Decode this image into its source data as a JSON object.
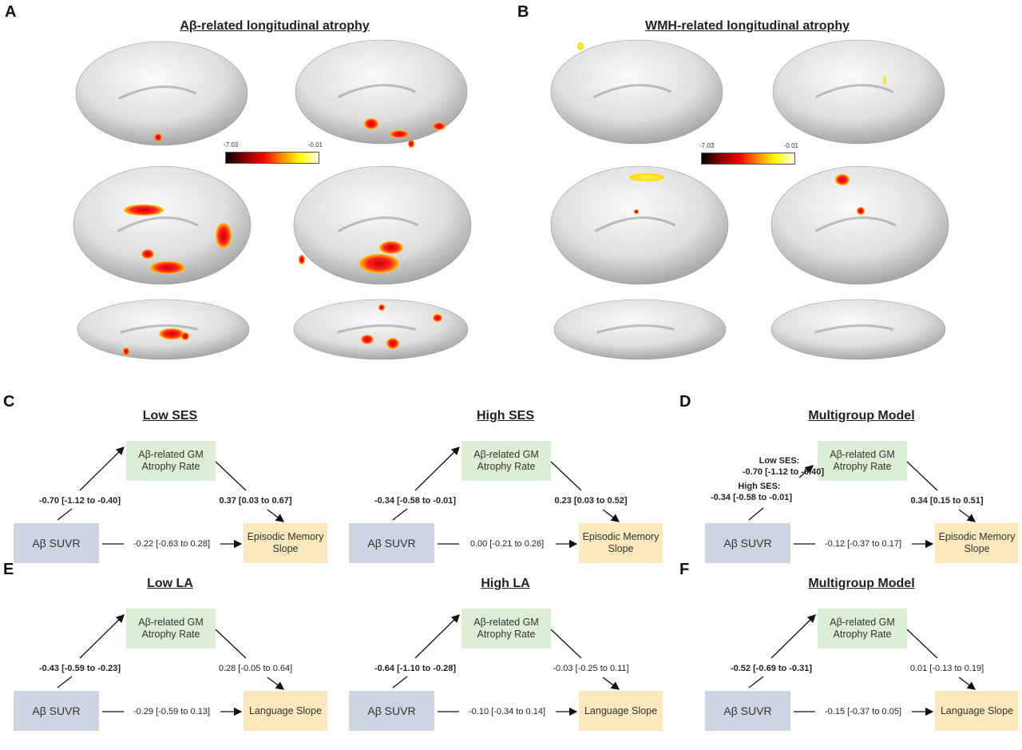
{
  "panels": {
    "A": {
      "label": "A",
      "title": "Aβ-related longitudinal atrophy",
      "colorbar": {
        "min": "-7.03",
        "max": "-0.01"
      }
    },
    "B": {
      "label": "B",
      "title": "WMH-related longitudinal atrophy",
      "colorbar": {
        "min": "-7.03",
        "max": "-0.01"
      }
    },
    "C": {
      "label": "C"
    },
    "D": {
      "label": "D"
    },
    "E": {
      "label": "E"
    },
    "F": {
      "label": "F"
    }
  },
  "colormap": [
    "#000000",
    "#880000",
    "#ee0000",
    "#ff8800",
    "#ffff00",
    "#ffffe8"
  ],
  "diagrams": [
    {
      "id": "c-low-ses",
      "title": "Low SES",
      "mediator": "Aβ-related GM Atrophy Rate",
      "predictor": "Aβ SUVR",
      "outcome": "Episodic Memory Slope",
      "a": [
        "-0.70 [-1.12 to -0.40]"
      ],
      "a_bold": true,
      "b": "0.37 [0.03 to 0.67]",
      "b_bold": true,
      "c": "-0.22 [-0.63 to 0.28]"
    },
    {
      "id": "c-high-ses",
      "title": "High SES",
      "mediator": "Aβ-related GM Atrophy Rate",
      "predictor": "Aβ SUVR",
      "outcome": "Episodic Memory Slope",
      "a": [
        "-0.34 [-0.58 to -0.01]"
      ],
      "a_bold": true,
      "b": "0.23 [0.03 to 0.52]",
      "b_bold": true,
      "c": "0.00 [-0.21 to 0.26]"
    },
    {
      "id": "d-multigroup",
      "title": "Multigroup Model",
      "mediator": "Aβ-related GM Atrophy Rate",
      "predictor": "Aβ SUVR",
      "outcome": "Episodic Memory Slope",
      "a": [
        "Low SES:",
        "-0.70 [-1.12 to -0.40]",
        "High SES:",
        "-0.34 [-0.58 to -0.01]"
      ],
      "a_bold": true,
      "b": "0.34 [0.15 to 0.51]",
      "b_bold": true,
      "c": "-0.12 [-0.37 to 0.17]"
    },
    {
      "id": "e-low-la",
      "title": "Low LA",
      "mediator": "Aβ-related GM Atrophy Rate",
      "predictor": "Aβ SUVR",
      "outcome": "Language Slope",
      "a": [
        "-0.43 [-0.59 to -0.23]"
      ],
      "a_bold": true,
      "b": "0.28 [-0.05 to 0.64]",
      "b_bold": false,
      "c": "-0.29 [-0.59 to 0.13]"
    },
    {
      "id": "e-high-la",
      "title": "High LA",
      "mediator": "Aβ-related GM Atrophy Rate",
      "predictor": "Aβ SUVR",
      "outcome": "Language Slope",
      "a": [
        "-0.64 [-1.10 to -0.28]"
      ],
      "a_bold": true,
      "b": "-0.03 [-0.25 to 0.11]",
      "b_bold": false,
      "c": "-0.10 [-0.34 to 0.14]"
    },
    {
      "id": "f-multigroup",
      "title": "Multigroup Model",
      "mediator": "Aβ-related GM Atrophy Rate",
      "predictor": "Aβ SUVR",
      "outcome": "Language Slope",
      "a": [
        "-0.52 [-0.69 to -0.31]"
      ],
      "a_bold": true,
      "b": "0.01 [-0.13 to 0.19]",
      "b_bold": false,
      "c": "-0.15 [-0.37 to 0.05]"
    }
  ]
}
